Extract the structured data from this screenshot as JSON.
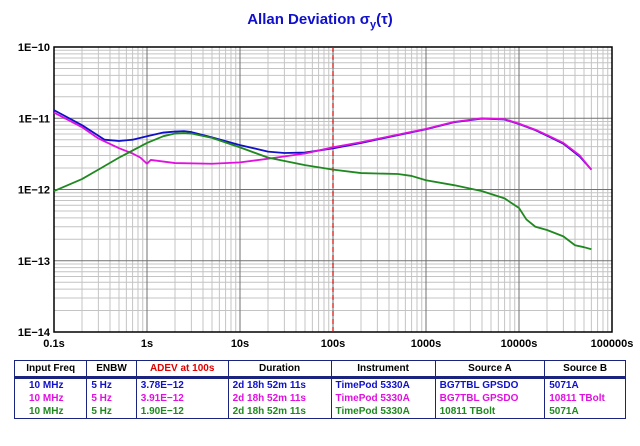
{
  "title": {
    "main": "Allan Deviation",
    "symbol": "σ",
    "sub": "y",
    "arg": "(τ)"
  },
  "colors": {
    "series1": "#1010c8",
    "series2": "#e010e0",
    "series3": "#208820",
    "marker": "#e00000",
    "frame": "#1a237e"
  },
  "chart_data": {
    "type": "line",
    "x_scale": "log",
    "y_scale": "log",
    "xlim": [
      0.1,
      100000
    ],
    "ylim": [
      1e-14,
      1e-10
    ],
    "x_ticks": [
      0.1,
      1,
      10,
      100,
      1000,
      10000,
      100000
    ],
    "x_tick_labels": [
      "0.1s",
      "1s",
      "10s",
      "100s",
      "1000s",
      "10000s",
      "100000s"
    ],
    "y_ticks": [
      1e-14,
      1e-13,
      1e-12,
      1e-11,
      1e-10
    ],
    "y_tick_labels": [
      "1E−14",
      "1E−13",
      "1E−12",
      "1E−11",
      "1E−10"
    ],
    "grid": true,
    "marker_x": 100,
    "series": [
      {
        "color_key": "series1",
        "points": [
          [
            0.1,
            1.3e-11
          ],
          [
            0.2,
            8e-12
          ],
          [
            0.35,
            5e-12
          ],
          [
            0.5,
            4.8e-12
          ],
          [
            0.7,
            5e-12
          ],
          [
            1,
            5.6e-12
          ],
          [
            1.5,
            6.3e-12
          ],
          [
            2,
            6.5e-12
          ],
          [
            2.5,
            6.6e-12
          ],
          [
            3,
            6.4e-12
          ],
          [
            5,
            5.4e-12
          ],
          [
            10,
            4.2e-12
          ],
          [
            20,
            3.4e-12
          ],
          [
            30,
            3.25e-12
          ],
          [
            50,
            3.3e-12
          ],
          [
            100,
            3.78e-12
          ],
          [
            200,
            4.5e-12
          ],
          [
            500,
            5.8e-12
          ],
          [
            1000,
            7e-12
          ],
          [
            2000,
            8.8e-12
          ],
          [
            4000,
            9.9e-12
          ],
          [
            7000,
            9.6e-12
          ],
          [
            10000,
            8.3e-12
          ],
          [
            15000,
            6.8e-12
          ],
          [
            20000,
            5.7e-12
          ],
          [
            30000,
            4.4e-12
          ],
          [
            45000,
            2.9e-12
          ],
          [
            60000,
            1.9e-12
          ]
        ]
      },
      {
        "color_key": "series2",
        "points": [
          [
            0.1,
            1.2e-11
          ],
          [
            0.2,
            7.5e-12
          ],
          [
            0.3,
            5.2e-12
          ],
          [
            0.5,
            3.8e-12
          ],
          [
            0.7,
            3.2e-12
          ],
          [
            0.85,
            2.8e-12
          ],
          [
            1,
            2.3e-12
          ],
          [
            1.1,
            2.6e-12
          ],
          [
            2,
            2.35e-12
          ],
          [
            5,
            2.3e-12
          ],
          [
            10,
            2.4e-12
          ],
          [
            20,
            2.7e-12
          ],
          [
            50,
            3.2e-12
          ],
          [
            100,
            3.91e-12
          ],
          [
            200,
            4.6e-12
          ],
          [
            500,
            5.9e-12
          ],
          [
            1000,
            7.1e-12
          ],
          [
            2000,
            8.9e-12
          ],
          [
            4000,
            1e-11
          ],
          [
            7000,
            9.7e-12
          ],
          [
            10000,
            8.4e-12
          ],
          [
            15000,
            6.9e-12
          ],
          [
            20000,
            5.8e-12
          ],
          [
            30000,
            4.5e-12
          ],
          [
            45000,
            3e-12
          ],
          [
            60000,
            1.9e-12
          ]
        ]
      },
      {
        "color_key": "series3",
        "points": [
          [
            0.1,
            9.5e-13
          ],
          [
            0.2,
            1.4e-12
          ],
          [
            0.3,
            1.9e-12
          ],
          [
            0.5,
            2.8e-12
          ],
          [
            1,
            4.5e-12
          ],
          [
            1.5,
            5.6e-12
          ],
          [
            2,
            6.1e-12
          ],
          [
            2.5,
            6.2e-12
          ],
          [
            3,
            6.1e-12
          ],
          [
            5,
            5.3e-12
          ],
          [
            10,
            3.9e-12
          ],
          [
            20,
            2.8e-12
          ],
          [
            50,
            2.2e-12
          ],
          [
            100,
            1.9e-12
          ],
          [
            200,
            1.7e-12
          ],
          [
            500,
            1.65e-12
          ],
          [
            700,
            1.55e-12
          ],
          [
            1000,
            1.35e-12
          ],
          [
            2000,
            1.15e-12
          ],
          [
            4000,
            9.5e-13
          ],
          [
            7000,
            7.5e-13
          ],
          [
            10000,
            5.5e-13
          ],
          [
            12000,
            3.8e-13
          ],
          [
            15000,
            3e-13
          ],
          [
            20000,
            2.7e-13
          ],
          [
            30000,
            2.2e-13
          ],
          [
            40000,
            1.65e-13
          ],
          [
            50000,
            1.55e-13
          ],
          [
            60000,
            1.45e-13
          ]
        ]
      }
    ]
  },
  "table": {
    "headers": [
      "Input Freq",
      "ENBW",
      "ADEV at 100s",
      "Duration",
      "Instrument",
      "Source A",
      "Source B"
    ],
    "rows": [
      {
        "color_key": "series1",
        "cells": [
          "10 MHz",
          "5 Hz",
          "3.78E−12",
          "2d 18h 52m 11s",
          "TimePod 5330A",
          "BG7TBL GPSDO",
          "5071A"
        ]
      },
      {
        "color_key": "series2",
        "cells": [
          "10 MHz",
          "5 Hz",
          "3.91E−12",
          "2d 18h 52m 11s",
          "TimePod 5330A",
          "BG7TBL GPSDO",
          "10811 TBolt"
        ]
      },
      {
        "color_key": "series3",
        "cells": [
          "10 MHz",
          "5 Hz",
          "1.90E−12",
          "2d 18h 52m 11s",
          "TimePod 5330A",
          "10811 TBolt",
          "5071A"
        ]
      }
    ]
  }
}
